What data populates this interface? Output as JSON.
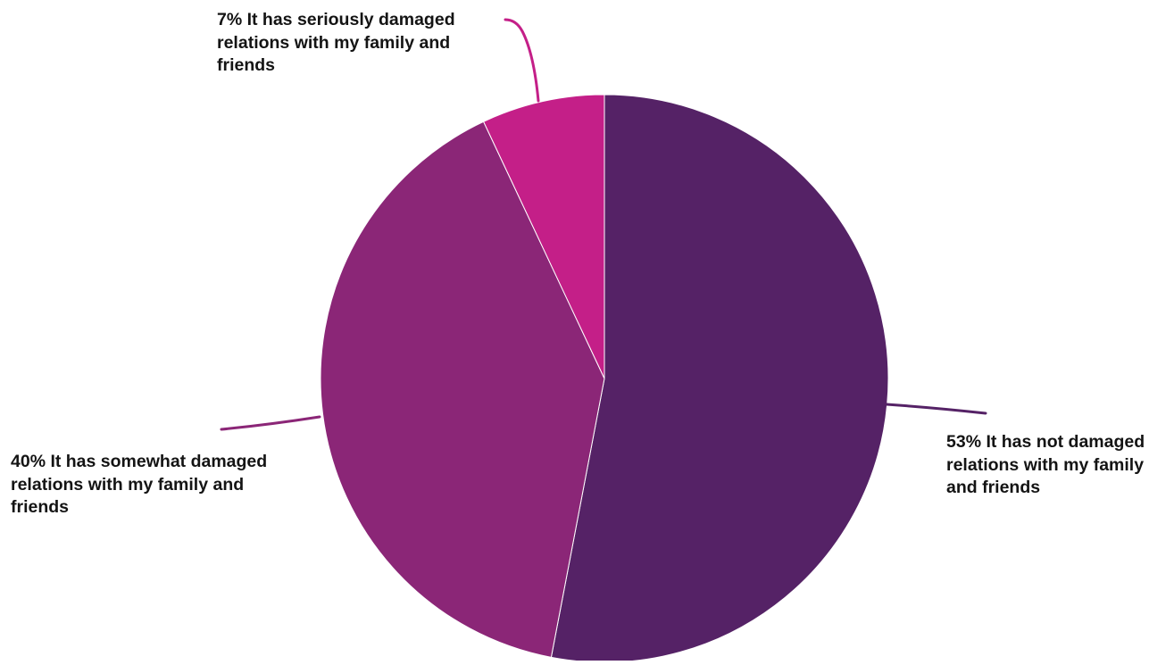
{
  "chart_data": {
    "type": "pie",
    "title": "",
    "start": "12 o'clock, clockwise",
    "slices": [
      {
        "label": "53% It has not damaged relations with my family and friends",
        "value": 53,
        "color": "#552266"
      },
      {
        "label": "40% It has somewhat damaged relations with my family and friends",
        "value": 40,
        "color": "#8b2677"
      },
      {
        "label": "7% It has seriously damaged relations with my family and friends",
        "value": 7,
        "color": "#c41f88"
      }
    ]
  }
}
